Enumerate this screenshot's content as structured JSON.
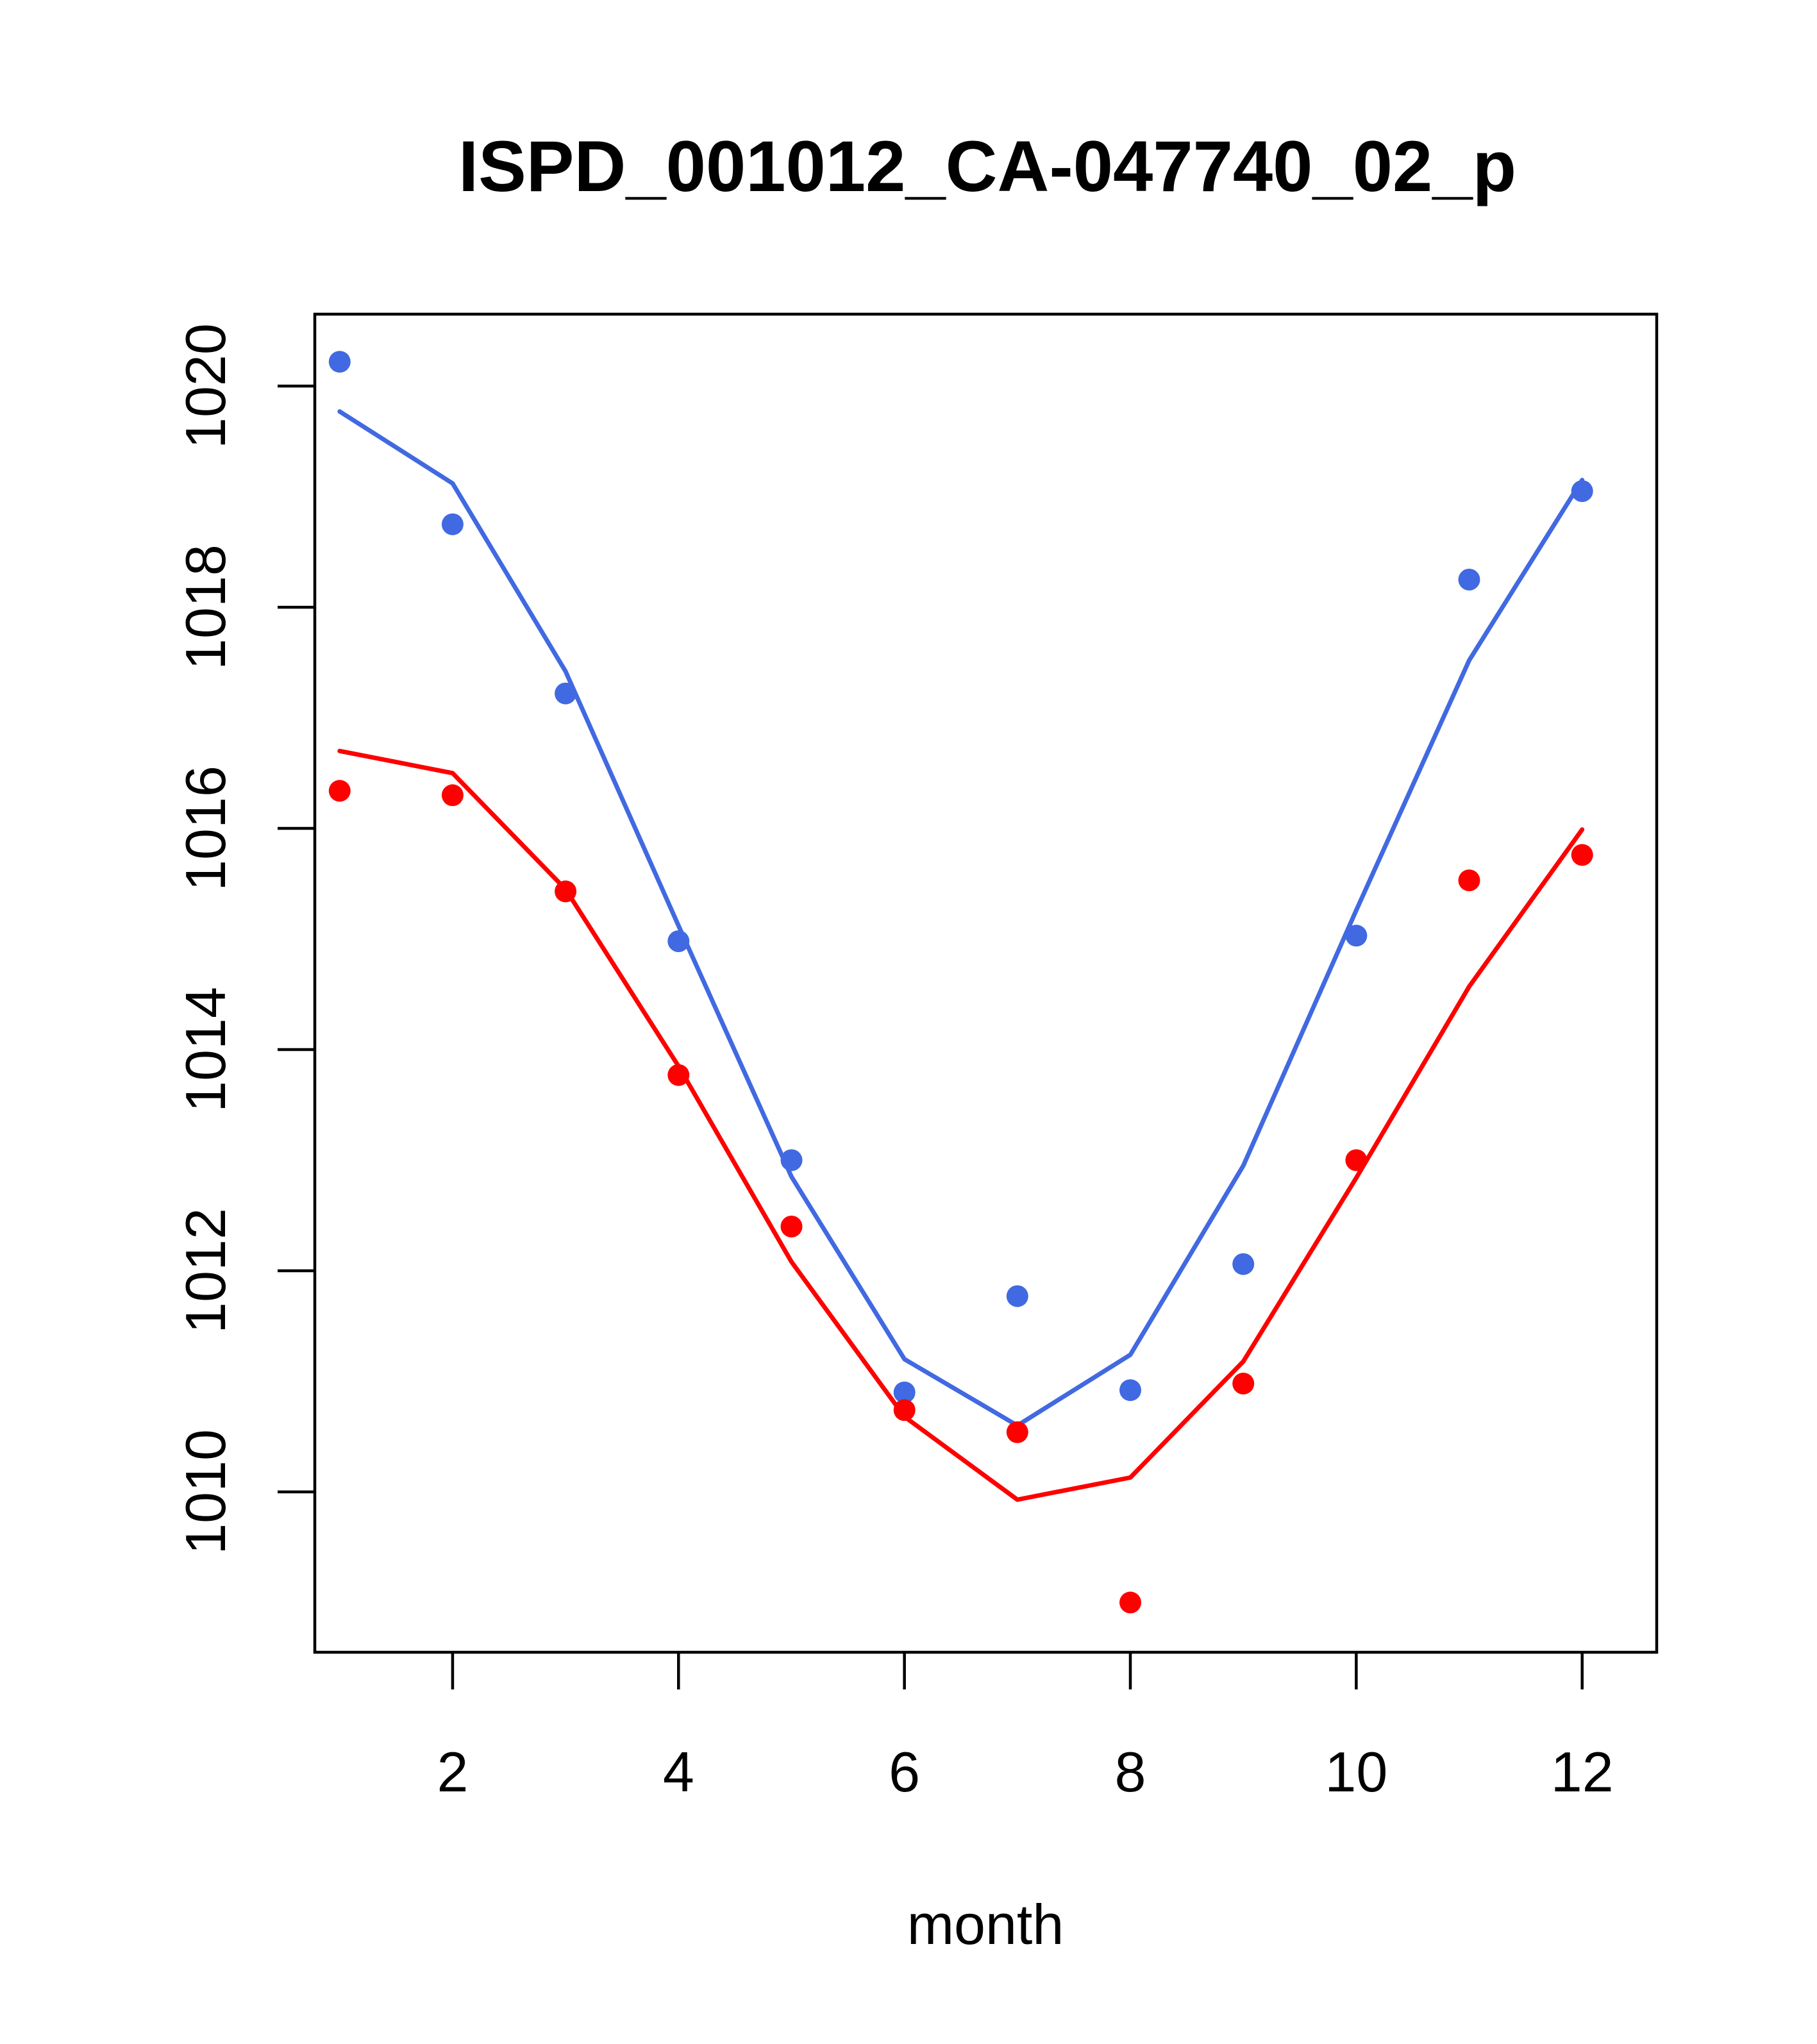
{
  "chart_data": {
    "type": "scatter",
    "title": "ISPD_001012_CA-047740_02_p",
    "xlabel": "month",
    "ylabel": "",
    "xlim": [
      0.78,
      12.66
    ],
    "ylim": [
      1008.55,
      1020.65
    ],
    "xticks": [
      2,
      4,
      6,
      8,
      10,
      12
    ],
    "yticks": [
      1010,
      1012,
      1014,
      1016,
      1018,
      1020
    ],
    "grid": false,
    "legend": "none",
    "series": [
      {
        "color": "#4169E1",
        "points": {
          "x": [
            1,
            2,
            3,
            4,
            5,
            6,
            7,
            8,
            9,
            10,
            11,
            12
          ],
          "y": [
            1020.22,
            1018.75,
            1017.22,
            1014.98,
            1013.0,
            1010.9,
            1011.77,
            1010.92,
            1012.06,
            1015.03,
            1018.25,
            1019.05
          ]
        },
        "line": {
          "x": [
            1,
            2,
            3,
            4,
            5,
            6,
            7,
            8,
            9,
            10,
            11,
            12
          ],
          "y": [
            1019.77,
            1019.12,
            1017.42,
            1015.12,
            1012.85,
            1011.2,
            1010.6,
            1011.24,
            1012.95,
            1015.26,
            1017.52,
            1019.15
          ]
        }
      },
      {
        "color": "#FF0000",
        "points": {
          "x": [
            1,
            2,
            3,
            4,
            5,
            6,
            7,
            8,
            9,
            10,
            11,
            12
          ],
          "y": [
            1016.34,
            1016.3,
            1015.43,
            1013.77,
            1012.4,
            1010.74,
            1010.54,
            1009.0,
            1010.98,
            1013.0,
            1015.53,
            1015.76
          ]
        },
        "line": {
          "x": [
            1,
            2,
            3,
            4,
            5,
            6,
            7,
            8,
            9,
            10,
            11,
            12
          ],
          "y": [
            1016.7,
            1016.5,
            1015.45,
            1013.85,
            1012.08,
            1010.68,
            1009.93,
            1010.13,
            1011.18,
            1012.84,
            1014.57,
            1015.99
          ]
        }
      }
    ]
  }
}
